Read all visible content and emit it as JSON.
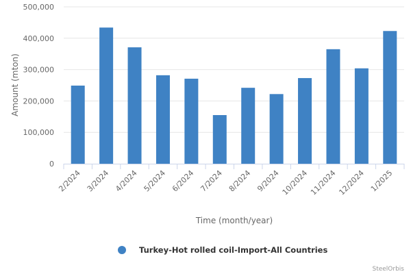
{
  "chart_data": {
    "type": "bar",
    "categories": [
      "2/2024",
      "3/2024",
      "4/2024",
      "5/2024",
      "6/2024",
      "7/2024",
      "8/2024",
      "9/2024",
      "10/2024",
      "11/2024",
      "12/2024",
      "1/2025"
    ],
    "series": [
      {
        "name": "Turkey-Hot rolled coil-Import-All Countries",
        "color": "#3f82c4",
        "values": [
          249000,
          434000,
          371000,
          282000,
          271000,
          155000,
          242000,
          222000,
          273000,
          365000,
          304000,
          423000
        ]
      }
    ],
    "xlabel": "Time (month/year)",
    "ylabel": "Amount (mton)",
    "ylim": [
      0,
      500000
    ],
    "yticks": [
      0,
      100000,
      200000,
      300000,
      400000,
      500000
    ],
    "ytick_labels": [
      "0",
      "100,000",
      "200,000",
      "300,000",
      "400,000",
      "500,000"
    ],
    "grid": true,
    "legend_position": "bottom"
  },
  "credit": "SteelOrbis"
}
